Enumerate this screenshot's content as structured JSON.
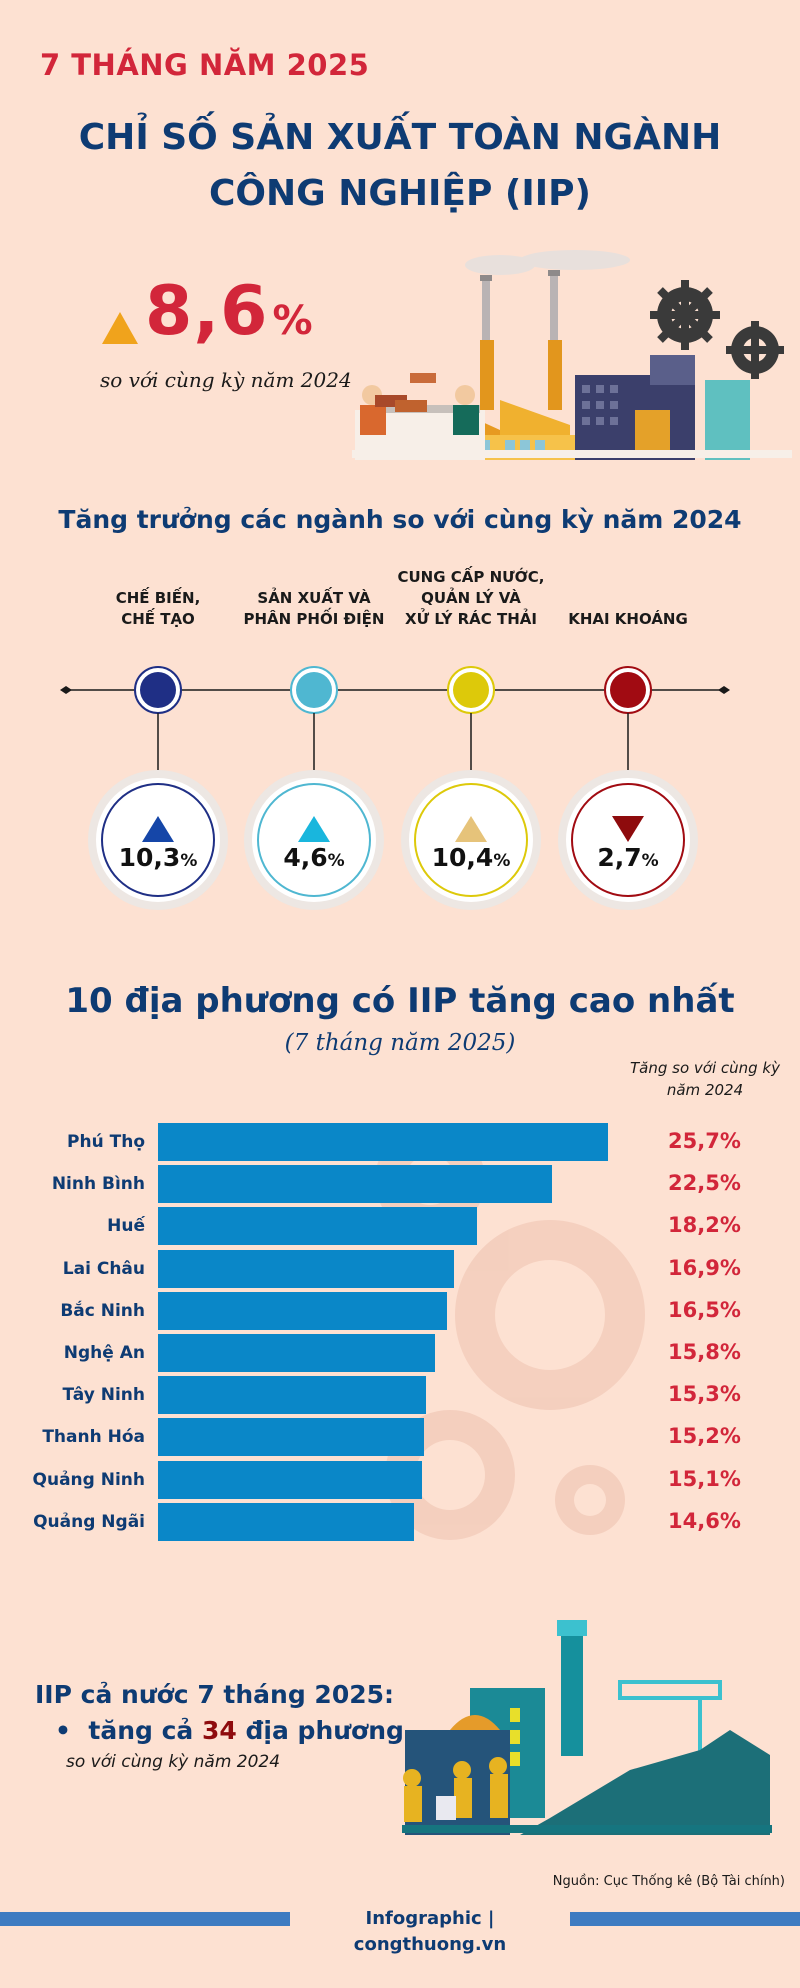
{
  "header": {
    "period": "7 THÁNG NĂM 2025",
    "title_line1": "CHỈ SỐ SẢN XUẤT TOÀN NGÀNH",
    "title_line2": "CÔNG NGHIỆP (IIP)"
  },
  "headline": {
    "value": "8,6",
    "unit": "%",
    "subtitle": "so với cùng kỳ năm 2024",
    "direction": "up",
    "color": "#d2263a"
  },
  "sectors_section": {
    "title": "Tăng trưởng các ngành so với cùng kỳ năm 2024",
    "items": [
      {
        "label_lines": [
          "CHẾ BIẾN,",
          "CHẾ TẠO"
        ],
        "value": "10,3",
        "unit": "%",
        "direction": "up",
        "color": "#1f2f85",
        "arrow_color": "#1546a8"
      },
      {
        "label_lines": [
          "SẢN XUẤT VÀ",
          "PHÂN PHỐI ĐIỆN"
        ],
        "value": "4,6",
        "unit": "%",
        "direction": "up",
        "color": "#4fb7d1",
        "arrow_color": "#19b6dd"
      },
      {
        "label_lines": [
          "CUNG CẤP NƯỚC,",
          "QUẢN LÝ VÀ",
          "XỬ LÝ RÁC THẢI"
        ],
        "value": "10,4",
        "unit": "%",
        "direction": "up",
        "color": "#ddc90a",
        "arrow_color": "#e6c37a"
      },
      {
        "label_lines": [
          "KHAI KHOÁNG"
        ],
        "value": "2,7",
        "unit": "%",
        "direction": "down",
        "color": "#a10b12",
        "arrow_color": "#8e0b0d"
      }
    ]
  },
  "chart_data": {
    "type": "bar",
    "orientation": "horizontal",
    "title": "10 địa phương có IIP tăng cao nhất",
    "subtitle": "(7 tháng năm 2025)",
    "value_header": "Tăng so với cùng kỳ năm 2024",
    "unit": "%",
    "categories": [
      "Phú Thọ",
      "Ninh Bình",
      "Huế",
      "Lai Châu",
      "Bắc Ninh",
      "Nghệ An",
      "Tây Ninh",
      "Thanh Hóa",
      "Quảng Ninh",
      "Quảng Ngãi"
    ],
    "values": [
      25.7,
      22.5,
      18.2,
      16.9,
      16.5,
      15.8,
      15.3,
      15.2,
      15.1,
      14.6
    ],
    "value_labels": [
      "25,7%",
      "22,5%",
      "18,2%",
      "16,9%",
      "16,5%",
      "15,8%",
      "15,3%",
      "15,2%",
      "15,1%",
      "14,6%"
    ],
    "xlim": [
      0,
      25.7
    ],
    "bar_color": "#0a87c8",
    "label_color": "#d2263a"
  },
  "summary": {
    "title": "IIP cả nước 7 tháng 2025:",
    "bullet_prefix": "tăng cả ",
    "bullet_number": "34",
    "bullet_suffix": " địa phương",
    "sub": "so với cùng kỳ năm 2024"
  },
  "source": "Nguồn: Cục Thống kê (Bộ Tài chính)",
  "footer": "Infographic | congthuong.vn"
}
